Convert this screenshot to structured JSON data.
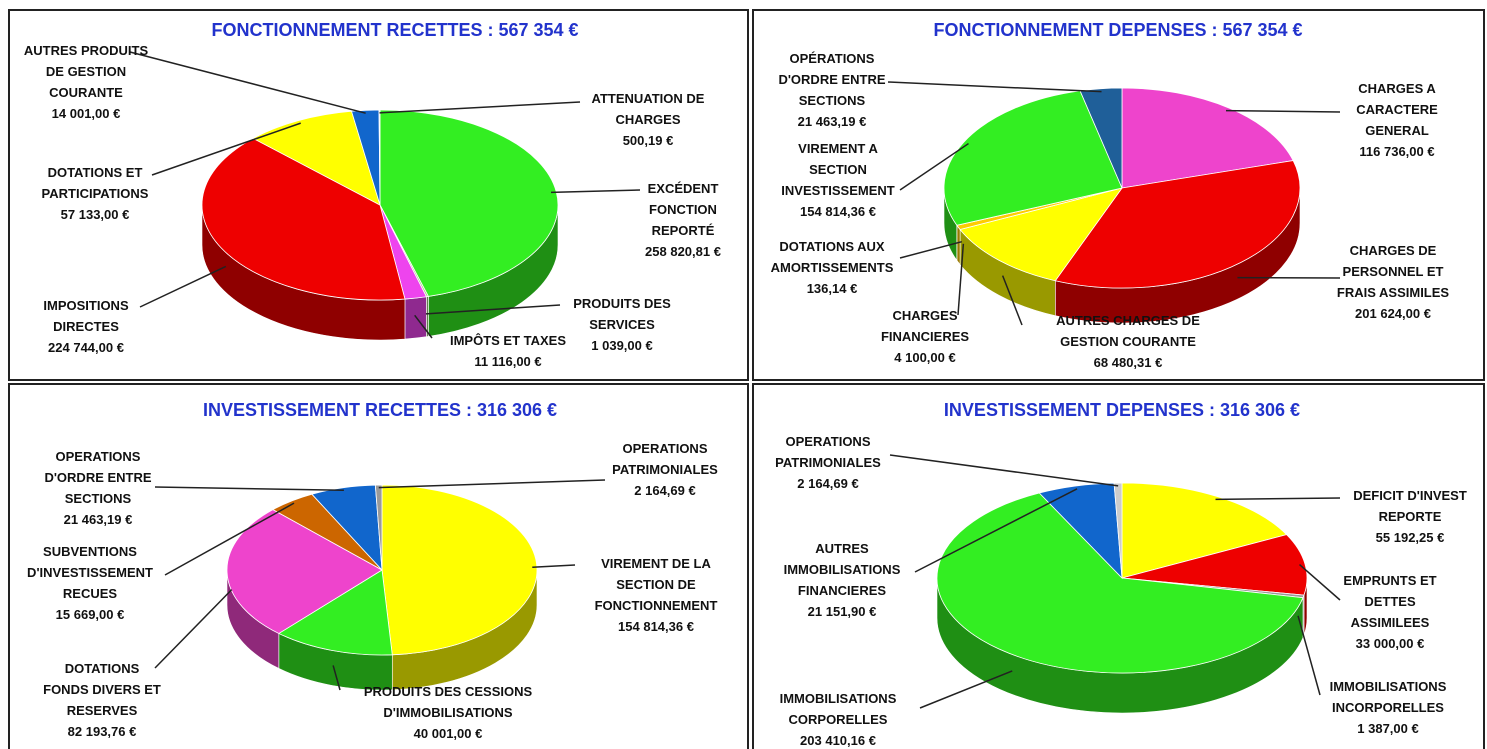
{
  "chart_data": [
    {
      "type": "pie",
      "title": "FONCTIONNEMENT RECETTES : 567 354 €",
      "categories": [
        "EXCÉDENT\nFONCTION\nREPORTÉ",
        "PRODUITS DES\nSERVICES",
        "IMPÔTS ET TAXES",
        "IMPOSITIONS\nDIRECTES",
        "DOTATIONS ET\nPARTICIPATIONS",
        "AUTRES PRODUITS\nDE GESTION\nCOURANTE",
        "ATTENUATION DE\nCHARGES"
      ],
      "values": [
        258820.81,
        1039,
        11116,
        224744,
        57133,
        14001,
        500.19
      ],
      "value_labels": [
        "258 820,81 €",
        "1 039,00 €",
        "11 116,00 €",
        "224 744,00 €",
        "57 133,00 €",
        "14 001,00 €",
        "500,19 €"
      ],
      "colors": [
        "#33ee22",
        "#aacc88",
        "#ee44ee",
        "#ee0000",
        "#ffff00",
        "#1166cc",
        "#c0c0c0"
      ]
    },
    {
      "type": "pie",
      "title": "FONCTIONNEMENT DEPENSES : 567 354 €",
      "categories": [
        "CHARGES A\nCARACTERE\nGENERAL",
        "CHARGES DE\nPERSONNEL ET\nFRAIS ASSIMILES",
        "AUTRES CHARGES DE\nGESTION COURANTE",
        "CHARGES\nFINANCIERES",
        "DOTATIONS AUX\nAMORTISSEMENTS",
        "VIREMENT A\nSECTION\nINVESTISSEMENT",
        "OPÉRATIONS\nD'ORDRE ENTRE\nSECTIONS"
      ],
      "values": [
        116736,
        201624,
        68480.31,
        4100,
        136.14,
        154814.36,
        21463.19
      ],
      "value_labels": [
        "116 736,00 €",
        "201 624,00 €",
        "68 480,31 €",
        "4 100,00 €",
        "136,14 €",
        "154 814,36 €",
        "21 463,19 €"
      ],
      "colors": [
        "#ee44cc",
        "#ee0000",
        "#ffff00",
        "#ffcc00",
        "#999999",
        "#33ee22",
        "#1f5f99"
      ]
    },
    {
      "type": "pie",
      "title": "INVESTISSEMENT RECETTES : 316 306 €",
      "categories": [
        "VIREMENT DE LA\nSECTION DE\nFONCTIONNEMENT",
        "PRODUITS DES CESSIONS\nD'IMMOBILISATIONS",
        "DOTATIONS\nFONDS DIVERS ET\nRESERVES",
        "SUBVENTIONS\nD'INVESTISSEMENT\nRECUES",
        "OPERATIONS\nD'ORDRE ENTRE\nSECTIONS",
        "OPERATIONS\nPATRIMONIALES"
      ],
      "values": [
        154814.36,
        40001,
        82193.76,
        15669,
        21463.19,
        2164.69
      ],
      "value_labels": [
        "154 814,36 €",
        "40 001,00 €",
        "82 193,76 €",
        "15 669,00 €",
        "21 463,19 €",
        "2 164,69 €"
      ],
      "colors": [
        "#ffff00",
        "#33ee22",
        "#ee44cc",
        "#cc6600",
        "#1166cc",
        "#999999"
      ]
    },
    {
      "type": "pie",
      "title": "INVESTISSEMENT DEPENSES : 316 306 €",
      "categories": [
        "DEFICIT D'INVEST\nREPORTE",
        "EMPRUNTS ET\nDETTES\nASSIMILEES",
        "IMMOBILISATIONS\nINCORPORELLES",
        "IMMOBILISATIONS\nCORPORELLES",
        "AUTRES\nIMMOBILISATIONS\nFINANCIERES",
        "OPERATIONS\nPATRIMONIALES"
      ],
      "values": [
        55192.25,
        33000,
        1387,
        203410.16,
        21151.9,
        2164.69
      ],
      "value_labels": [
        "55 192,25 €",
        "33 000,00 €",
        "1 387,00 €",
        "203 410,16 €",
        "21 151,90 €",
        "2 164,69 €"
      ],
      "colors": [
        "#ffff00",
        "#ee0000",
        "#999999",
        "#33ee22",
        "#1166cc",
        "#cccccc"
      ]
    }
  ]
}
